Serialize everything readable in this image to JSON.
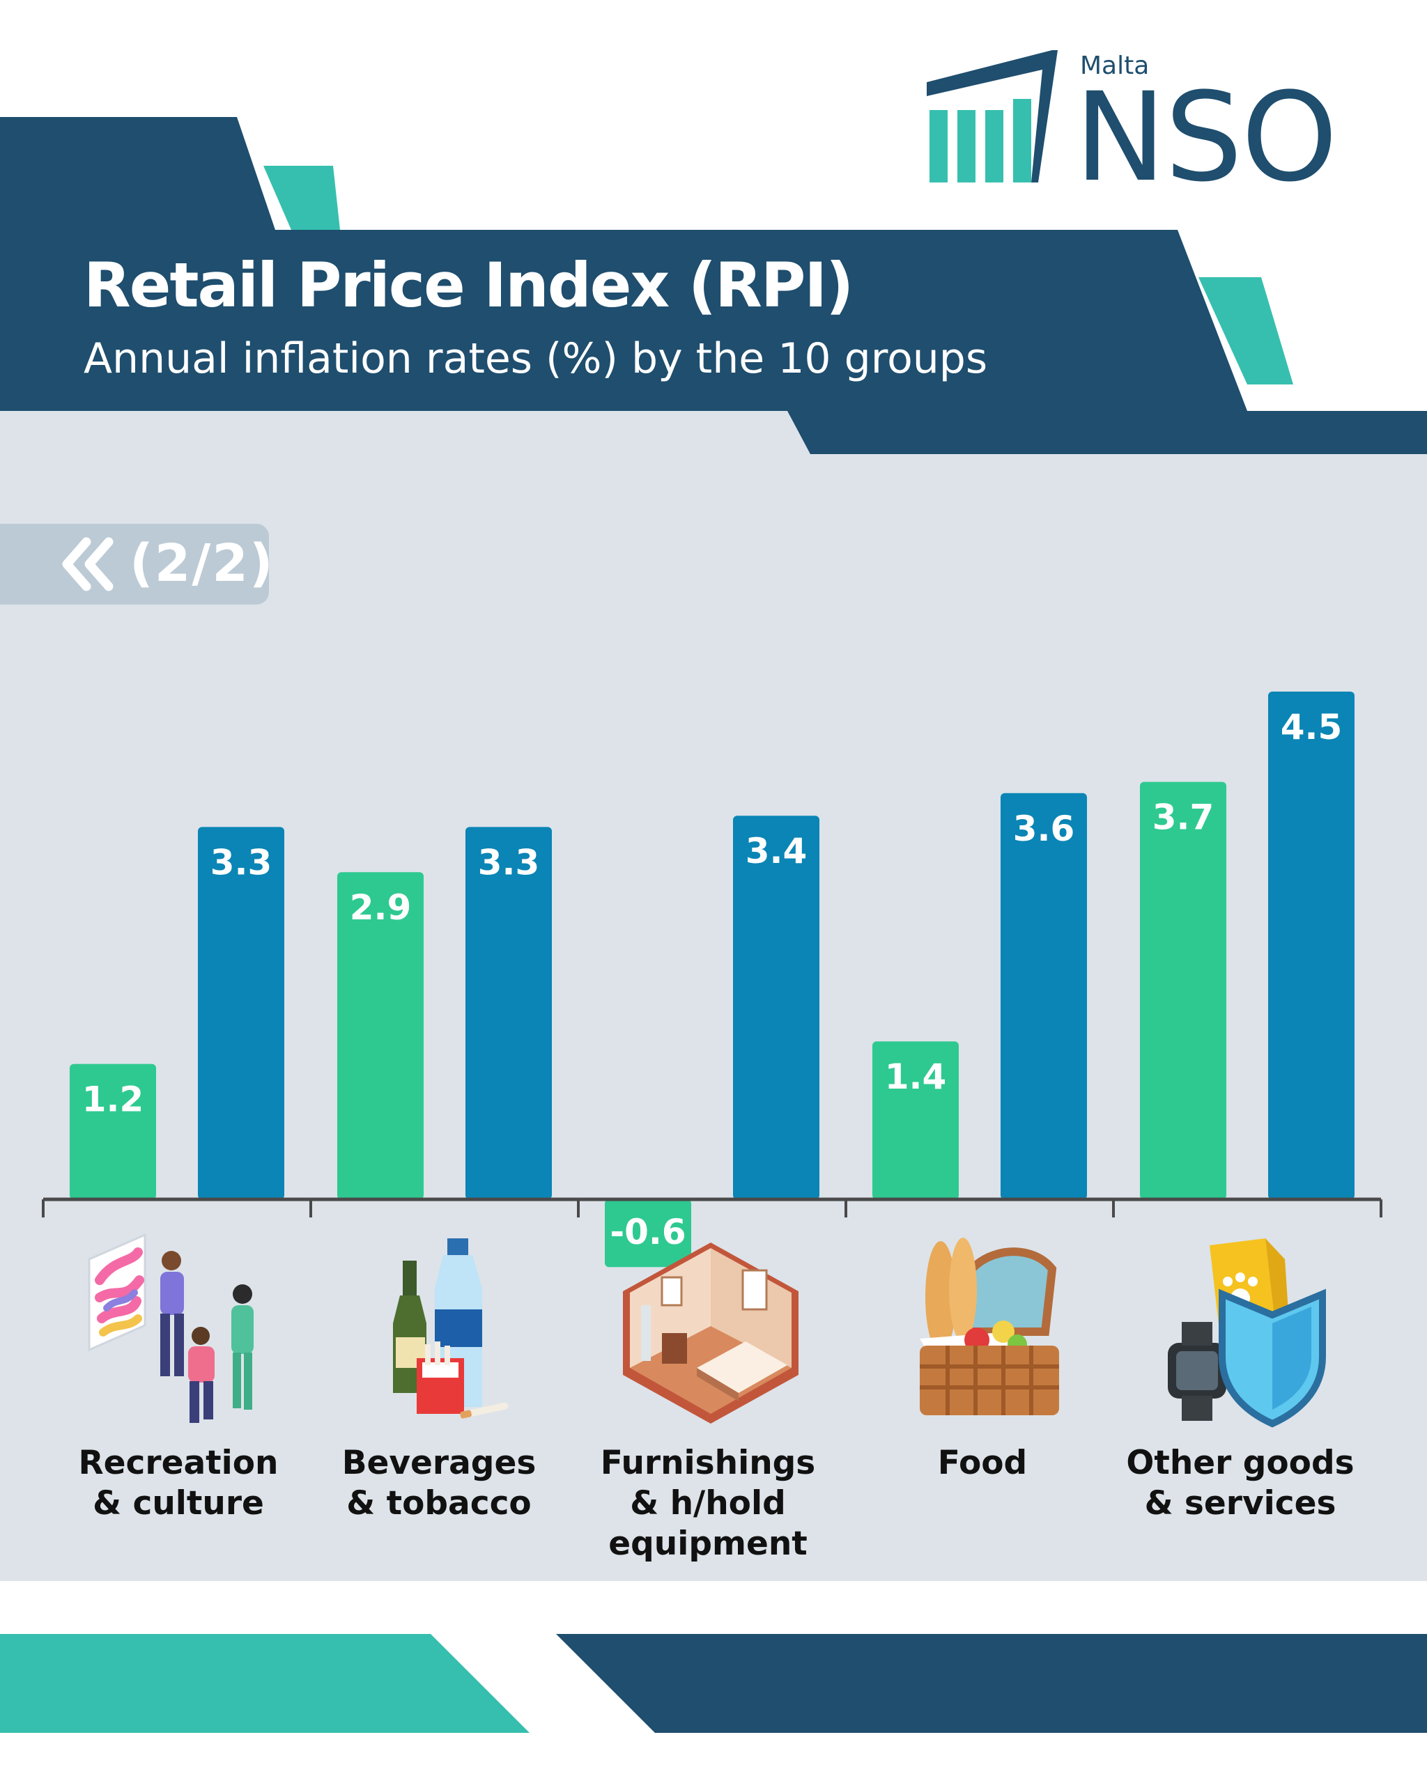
{
  "header": {
    "title": "Retail Price Index (RPI)",
    "subtitle": "Annual inflation rates (%) by the 10 groups"
  },
  "logo": {
    "country": "Malta",
    "acronym": "NSO"
  },
  "pager": {
    "icon": "double-chevron-left-icon",
    "label": "(2/2)"
  },
  "colors": {
    "navy": "#1f4e6e",
    "teal": "#36bfae",
    "green_series": "#2ec990",
    "blue_series": "#0a85b5",
    "chart_bg": "#dde3e9"
  },
  "chart_data": {
    "type": "bar",
    "categories": [
      [
        "Recreation",
        "& culture"
      ],
      [
        "Beverages",
        "& tobacco"
      ],
      [
        "Furnishings",
        "& h/hold",
        "equipment"
      ],
      [
        "Food"
      ],
      [
        "Other goods",
        "& services"
      ]
    ],
    "icons": [
      "recreation-people-icon",
      "bottles-cigarettes-icon",
      "bedroom-furniture-icon",
      "picnic-basket-icon",
      "pet-watch-shield-icon"
    ],
    "series": [
      {
        "color": "#2ec990",
        "values": [
          1.2,
          2.9,
          -0.6,
          1.4,
          3.7
        ],
        "labels": [
          "1.2",
          "2.9",
          "-0.6",
          "1.4",
          "3.7"
        ]
      },
      {
        "color": "#0a85b5",
        "values": [
          3.3,
          3.3,
          3.4,
          3.6,
          4.5
        ],
        "labels": [
          "3.3",
          "3.3",
          "3.4",
          "3.6",
          "4.5"
        ]
      }
    ],
    "ylim": [
      -0.6,
      4.5
    ],
    "grid": false,
    "legend": "none"
  }
}
